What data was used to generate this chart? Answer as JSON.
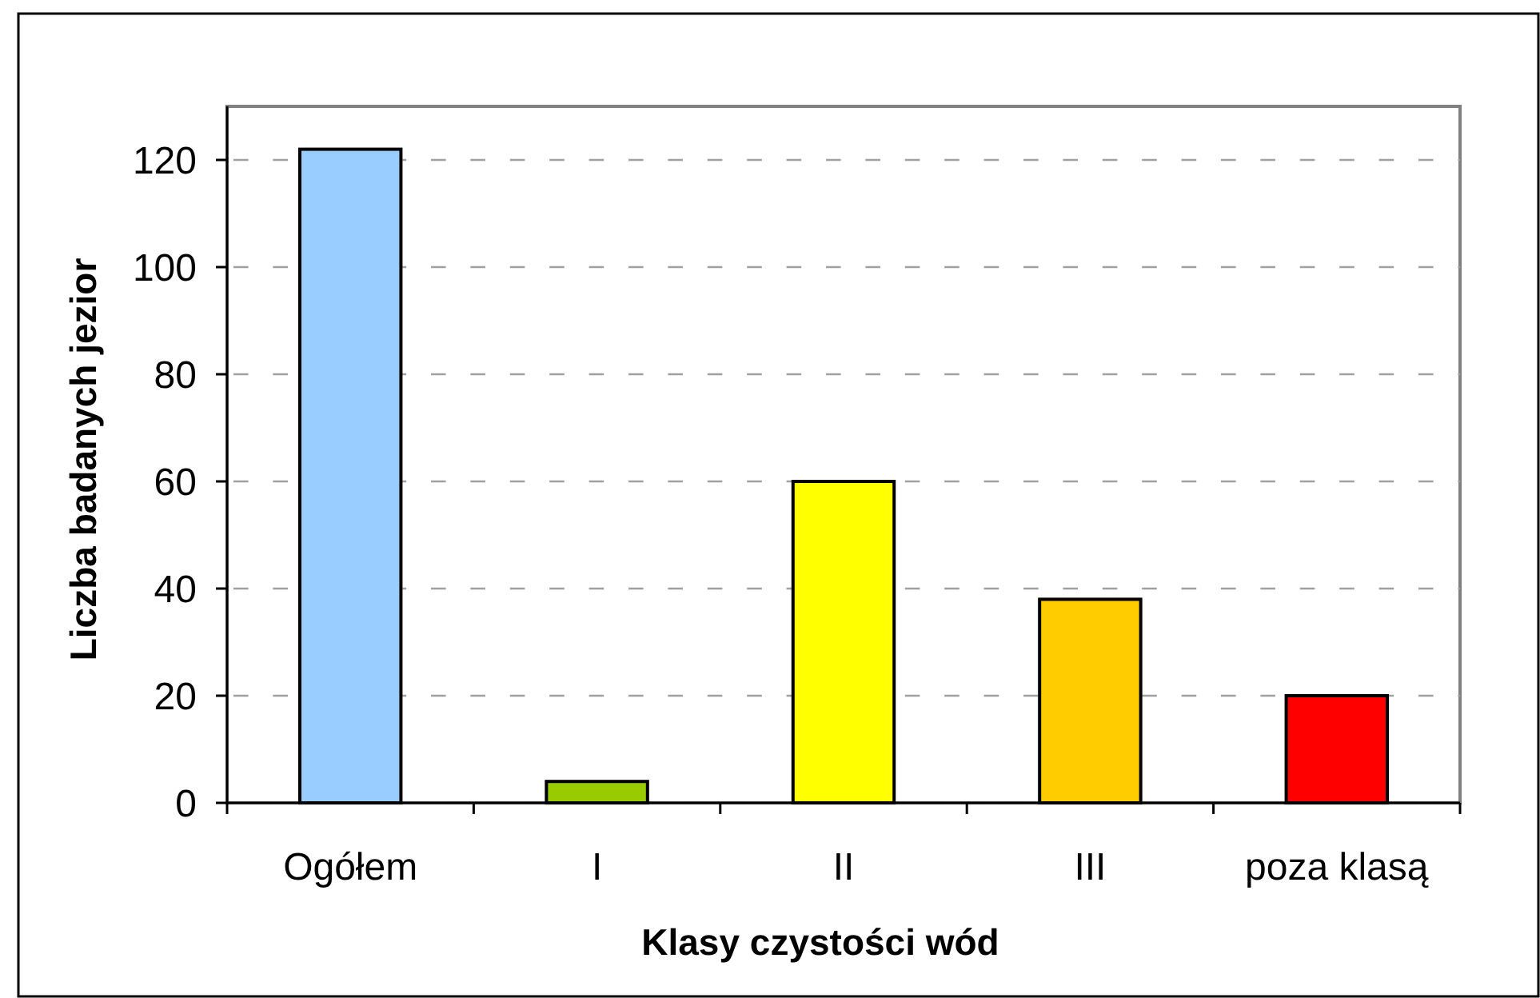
{
  "chart_data": {
    "type": "bar",
    "xlabel": "Klasy czystości wód",
    "ylabel": "Liczba badanych jezior",
    "categories": [
      "Ogółem",
      "I",
      "II",
      "III",
      "poza klasą"
    ],
    "values": [
      122,
      4,
      60,
      38,
      20
    ],
    "colors": [
      "#99ccff",
      "#99cc00",
      "#ffff00",
      "#ffcc00",
      "#ff0000"
    ],
    "ylim": [
      0,
      130
    ],
    "yticks": [
      0,
      20,
      40,
      60,
      80,
      100,
      120
    ],
    "grid": "y"
  }
}
